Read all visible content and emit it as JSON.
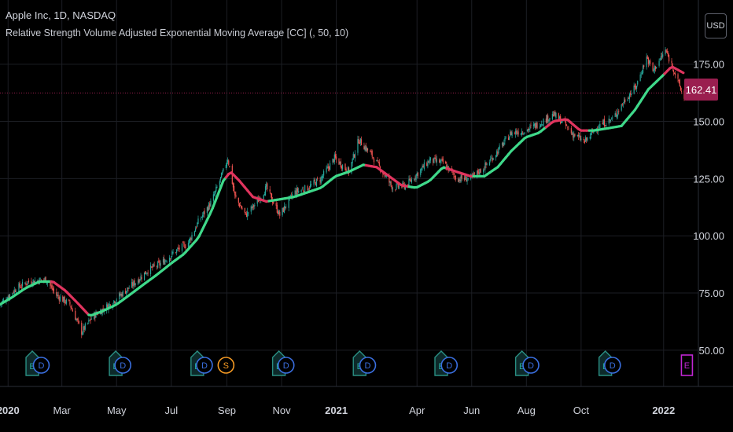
{
  "header": {
    "symbol_line": "Apple Inc, 1D, NASDAQ",
    "indicator_line": "Relative Strength Volume Adjusted Exponential Moving Average [CC] (, 50, 10)"
  },
  "currency_button": "USD",
  "last_price": {
    "label": "162.41",
    "value": 162.41,
    "color": "#9a1e4f"
  },
  "colors": {
    "background": "#000000",
    "ma_up": "#3fd98a",
    "ma_down": "#e0345e",
    "candle_up": "#26a69a",
    "candle_down": "#ef5350",
    "grid": "#1c1e24",
    "axis_text": "#d1d4dc",
    "price_line": "#9a1e4f"
  },
  "chart_data": {
    "type": "line",
    "y_axis": {
      "side": "right",
      "ylim": [
        40,
        190
      ],
      "ticks": [
        50,
        75,
        100,
        125,
        150,
        175
      ],
      "tick_labels": [
        "50.00",
        "75.00",
        "100.00",
        "125.00",
        "150.00",
        "175.00"
      ]
    },
    "x_axis": {
      "range": [
        "2019-12-23",
        "2022-01-24"
      ],
      "tick_labels": [
        {
          "label": "2020",
          "date": "2020-01-01",
          "bold": true
        },
        {
          "label": "Mar",
          "date": "2020-03-01",
          "bold": false
        },
        {
          "label": "May",
          "date": "2020-05-01",
          "bold": false
        },
        {
          "label": "Jul",
          "date": "2020-07-01",
          "bold": false
        },
        {
          "label": "Sep",
          "date": "2020-09-01",
          "bold": false
        },
        {
          "label": "Nov",
          "date": "2020-11-01",
          "bold": false
        },
        {
          "label": "2021",
          "date": "2021-01-01",
          "bold": true
        },
        {
          "label": "Apr",
          "date": "2021-04-01",
          "bold": false
        },
        {
          "label": "Jun",
          "date": "2021-06-01",
          "bold": false
        },
        {
          "label": "Aug",
          "date": "2021-08-01",
          "bold": false
        },
        {
          "label": "Oct",
          "date": "2021-10-01",
          "bold": false
        },
        {
          "label": "2022",
          "date": "2022-01-01",
          "bold": true
        }
      ]
    },
    "grid": true,
    "price_series": [
      [
        "2019-12-23",
        70
      ],
      [
        "2020-01-10",
        77
      ],
      [
        "2020-01-24",
        80
      ],
      [
        "2020-02-12",
        81
      ],
      [
        "2020-02-24",
        74
      ],
      [
        "2020-03-10",
        70
      ],
      [
        "2020-03-23",
        58
      ],
      [
        "2020-04-05",
        65
      ],
      [
        "2020-04-20",
        69
      ],
      [
        "2020-05-05",
        74
      ],
      [
        "2020-05-20",
        79
      ],
      [
        "2020-06-05",
        85
      ],
      [
        "2020-06-20",
        88
      ],
      [
        "2020-07-05",
        93
      ],
      [
        "2020-07-20",
        97
      ],
      [
        "2020-07-31",
        106
      ],
      [
        "2020-08-15",
        115
      ],
      [
        "2020-08-28",
        128
      ],
      [
        "2020-09-02",
        134
      ],
      [
        "2020-09-10",
        117
      ],
      [
        "2020-09-22",
        109
      ],
      [
        "2020-10-05",
        115
      ],
      [
        "2020-10-15",
        121
      ],
      [
        "2020-10-30",
        109
      ],
      [
        "2020-11-15",
        119
      ],
      [
        "2020-11-30",
        121
      ],
      [
        "2020-12-15",
        125
      ],
      [
        "2020-12-30",
        134
      ],
      [
        "2021-01-15",
        128
      ],
      [
        "2021-01-26",
        142
      ],
      [
        "2021-02-10",
        135
      ],
      [
        "2021-03-05",
        121
      ],
      [
        "2021-03-20",
        122
      ],
      [
        "2021-04-15",
        133
      ],
      [
        "2021-04-30",
        132
      ],
      [
        "2021-05-15",
        125
      ],
      [
        "2021-05-31",
        125
      ],
      [
        "2021-06-15",
        130
      ],
      [
        "2021-06-30",
        137
      ],
      [
        "2021-07-15",
        145
      ],
      [
        "2021-07-31",
        146
      ],
      [
        "2021-08-15",
        149
      ],
      [
        "2021-08-31",
        153
      ],
      [
        "2021-09-10",
        150
      ],
      [
        "2021-09-20",
        145
      ],
      [
        "2021-10-05",
        141
      ],
      [
        "2021-10-20",
        148
      ],
      [
        "2021-11-05",
        151
      ],
      [
        "2021-11-20",
        160
      ],
      [
        "2021-12-01",
        165
      ],
      [
        "2021-12-13",
        178
      ],
      [
        "2021-12-20",
        172
      ],
      [
        "2022-01-03",
        181
      ],
      [
        "2022-01-12",
        173
      ],
      [
        "2022-01-20",
        164
      ],
      [
        "2022-01-24",
        160
      ]
    ],
    "series": [
      {
        "values": [
          [
            "2019-12-23",
            70
          ],
          [
            "2020-01-05",
            73
          ],
          [
            "2020-01-20",
            77
          ],
          [
            "2020-02-05",
            80
          ],
          [
            "2020-02-20",
            80
          ],
          [
            "2020-03-05",
            76
          ],
          [
            "2020-03-20",
            70
          ],
          [
            "2020-04-01",
            65
          ],
          [
            "2020-04-15",
            67
          ],
          [
            "2020-05-01",
            70
          ],
          [
            "2020-05-15",
            74
          ],
          [
            "2020-06-01",
            79
          ],
          [
            "2020-06-15",
            83
          ],
          [
            "2020-07-01",
            88
          ],
          [
            "2020-07-15",
            92
          ],
          [
            "2020-07-31",
            99
          ],
          [
            "2020-08-15",
            111
          ],
          [
            "2020-08-28",
            124
          ],
          [
            "2020-09-05",
            128
          ],
          [
            "2020-09-15",
            124
          ],
          [
            "2020-09-30",
            117
          ],
          [
            "2020-10-15",
            115
          ],
          [
            "2020-10-31",
            116
          ],
          [
            "2020-11-15",
            117
          ],
          [
            "2020-11-30",
            119
          ],
          [
            "2020-12-15",
            121
          ],
          [
            "2020-12-31",
            126
          ],
          [
            "2021-01-15",
            128
          ],
          [
            "2021-01-31",
            131
          ],
          [
            "2021-02-15",
            130
          ],
          [
            "2021-03-01",
            126
          ],
          [
            "2021-03-15",
            122
          ],
          [
            "2021-03-31",
            121
          ],
          [
            "2021-04-15",
            124
          ],
          [
            "2021-04-30",
            130
          ],
          [
            "2021-05-15",
            128
          ],
          [
            "2021-05-31",
            126
          ],
          [
            "2021-06-15",
            126
          ],
          [
            "2021-06-30",
            130
          ],
          [
            "2021-07-15",
            137
          ],
          [
            "2021-07-31",
            143
          ],
          [
            "2021-08-15",
            145
          ],
          [
            "2021-08-31",
            150
          ],
          [
            "2021-09-15",
            151
          ],
          [
            "2021-09-30",
            146
          ],
          [
            "2021-10-15",
            146
          ],
          [
            "2021-10-31",
            147
          ],
          [
            "2021-11-15",
            148
          ],
          [
            "2021-11-30",
            155
          ],
          [
            "2021-12-15",
            164
          ],
          [
            "2021-12-31",
            170
          ],
          [
            "2022-01-10",
            174
          ],
          [
            "2022-01-24",
            171
          ]
        ],
        "down_ranges": [
          [
            "2020-02-20",
            "2020-04-02"
          ],
          [
            "2020-09-02",
            "2020-10-20"
          ],
          [
            "2021-02-05",
            "2021-03-25"
          ],
          [
            "2021-05-05",
            "2021-06-05"
          ],
          [
            "2021-08-25",
            "2021-10-12"
          ],
          [
            "2022-01-05",
            "2022-01-24"
          ]
        ]
      }
    ],
    "annotations": [
      {
        "date": "2020-01-28",
        "type": "E"
      },
      {
        "date": "2020-02-07",
        "type": "D"
      },
      {
        "date": "2020-04-30",
        "type": "E"
      },
      {
        "date": "2020-05-08",
        "type": "D"
      },
      {
        "date": "2020-07-30",
        "type": "E"
      },
      {
        "date": "2020-08-07",
        "type": "D"
      },
      {
        "date": "2020-08-31",
        "type": "S"
      },
      {
        "date": "2020-10-29",
        "type": "E"
      },
      {
        "date": "2020-11-06",
        "type": "D"
      },
      {
        "date": "2021-01-27",
        "type": "E"
      },
      {
        "date": "2021-02-05",
        "type": "D"
      },
      {
        "date": "2021-04-28",
        "type": "E"
      },
      {
        "date": "2021-05-07",
        "type": "D"
      },
      {
        "date": "2021-07-27",
        "type": "E"
      },
      {
        "date": "2021-08-06",
        "type": "D"
      },
      {
        "date": "2021-10-28",
        "type": "E"
      },
      {
        "date": "2021-11-05",
        "type": "D"
      },
      {
        "date": "2022-01-27",
        "type": "E-upcoming"
      }
    ]
  }
}
